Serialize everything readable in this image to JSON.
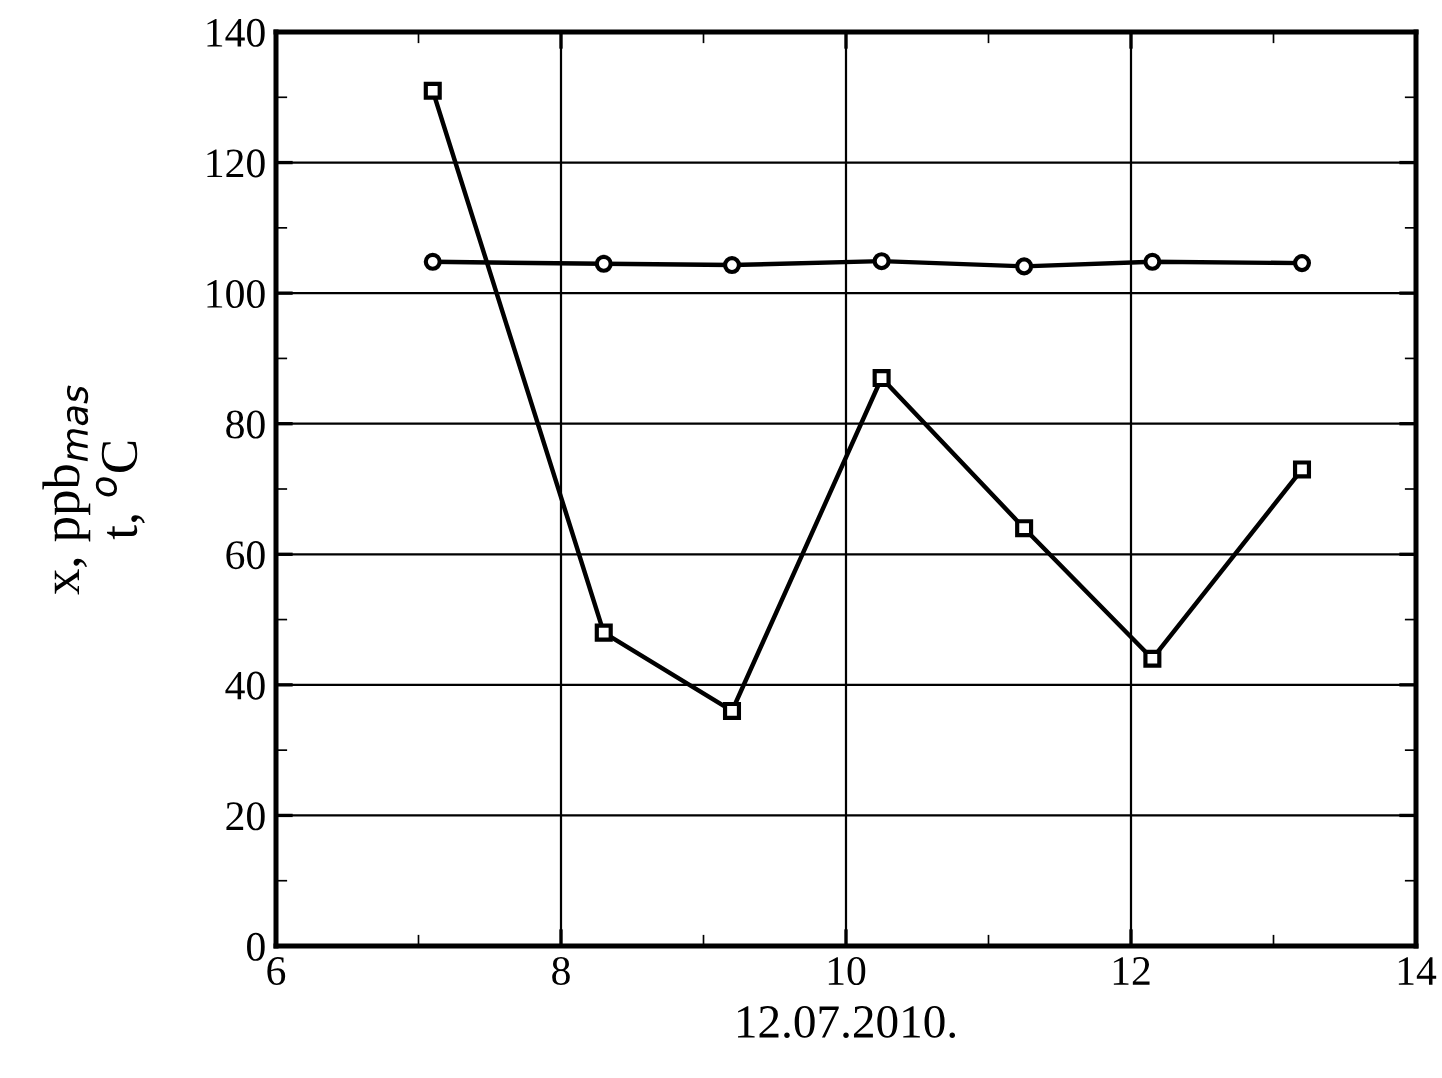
{
  "chart_data": {
    "type": "line",
    "xlabel": "12.07.2010.",
    "ylabel": "x, ppb$_{mas}$\nt, $^{o}$C",
    "x": [
      7.1,
      8.3,
      9.2,
      10.25,
      11.25,
      12.15,
      13.2
    ],
    "series": [
      {
        "color": "#000000",
        "marker": "circle",
        "values": [
          104.8,
          104.5,
          104.3,
          104.9,
          104.1,
          104.8,
          104.6
        ]
      },
      {
        "color": "#000000",
        "marker": "square",
        "values": [
          131,
          48,
          36,
          87,
          64,
          44,
          73
        ]
      }
    ],
    "xlim": [
      6,
      14
    ],
    "xticks": [
      6,
      8,
      10,
      12,
      14
    ],
    "ylim": [
      0,
      140
    ],
    "yticks": [
      0,
      20,
      40,
      60,
      80,
      100,
      120,
      140
    ],
    "grid": true,
    "line_style": "solid",
    "legend": false
  }
}
